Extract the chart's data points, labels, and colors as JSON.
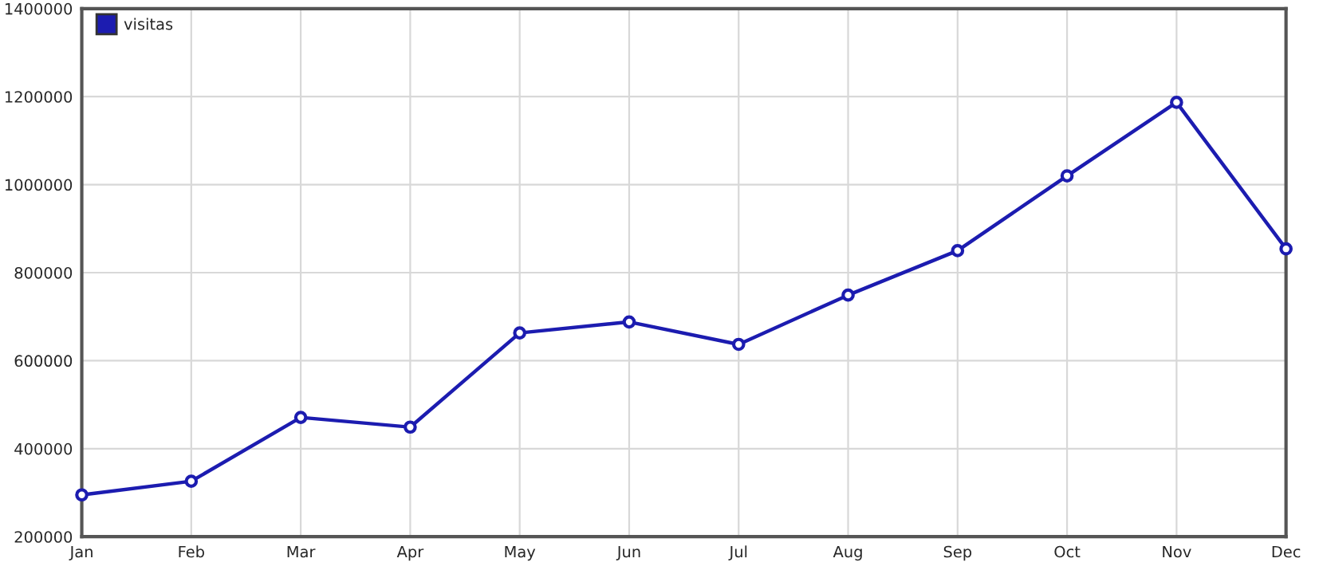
{
  "chart_data": {
    "type": "line",
    "categories": [
      "Jan",
      "Feb",
      "Mar",
      "Apr",
      "May",
      "Jun",
      "Jul",
      "Aug",
      "Sep",
      "Oct",
      "Nov",
      "Dec"
    ],
    "series": [
      {
        "name": "visitas",
        "color": "#1c1cb0",
        "values": [
          295000,
          326000,
          471000,
          449000,
          663000,
          688000,
          637000,
          749000,
          850000,
          1020000,
          1187000,
          854000
        ]
      }
    ],
    "ylim": [
      200000,
      1400000
    ],
    "yticks": [
      200000,
      400000,
      600000,
      800000,
      1000000,
      1200000,
      1400000
    ],
    "grid": true,
    "legend": "top left",
    "marker": "circle",
    "line_style": "solid"
  }
}
